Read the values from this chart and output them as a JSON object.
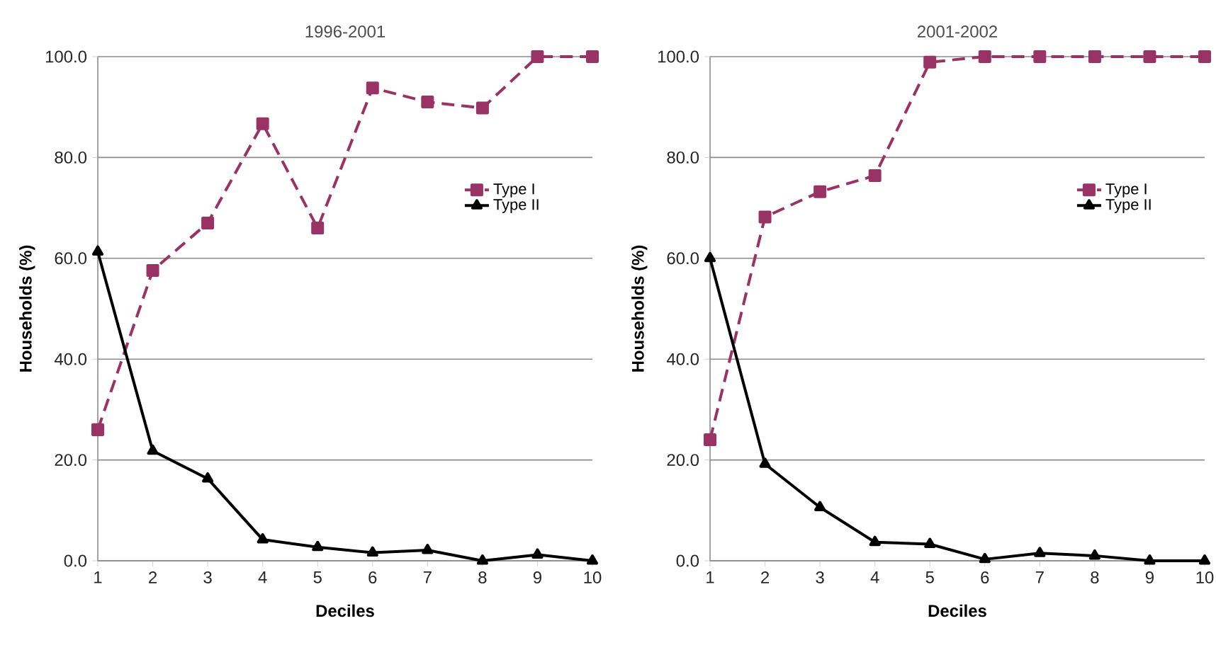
{
  "chart_data": [
    {
      "type": "line",
      "title": "1996-2001",
      "xlabel": "Deciles",
      "ylabel": "Households (%)",
      "categories": [
        "1",
        "2",
        "3",
        "4",
        "5",
        "6",
        "7",
        "8",
        "9",
        "10"
      ],
      "series": [
        {
          "name": "Type I",
          "color": "#993366",
          "marker": "square",
          "line_style": "dashed",
          "values": [
            26,
            57.6,
            67,
            86.7,
            66,
            93.8,
            91,
            89.8,
            100,
            100
          ]
        },
        {
          "name": "Type II",
          "color": "#000000",
          "marker": "triangle",
          "line_style": "solid",
          "values": [
            61.3,
            21.8,
            16.3,
            4.2,
            2.7,
            1.6,
            2.1,
            0,
            1.2,
            0
          ]
        }
      ],
      "ylim": [
        0,
        100
      ],
      "yticks": [
        {
          "value": 0,
          "label": "0.0"
        },
        {
          "value": 20,
          "label": "20.0"
        },
        {
          "value": 40,
          "label": "40.0"
        },
        {
          "value": 60,
          "label": "60.0"
        },
        {
          "value": 80,
          "label": "80.0"
        },
        {
          "value": 100,
          "label": "100.0"
        }
      ],
      "grid": "y",
      "legend": "right"
    },
    {
      "type": "line",
      "title": "2001-2002",
      "xlabel": "Deciles",
      "ylabel": "Households (%)",
      "categories": [
        "1",
        "2",
        "3",
        "4",
        "5",
        "6",
        "7",
        "8",
        "9",
        "10"
      ],
      "series": [
        {
          "name": "Type I",
          "color": "#993366",
          "marker": "square",
          "line_style": "dashed",
          "values": [
            24,
            68.2,
            73.2,
            76.4,
            98.9,
            100,
            100,
            100,
            100,
            100
          ]
        },
        {
          "name": "Type II",
          "color": "#000000",
          "marker": "triangle",
          "line_style": "solid",
          "values": [
            60,
            19.2,
            10.6,
            3.7,
            3.3,
            0.3,
            1.5,
            1.0,
            0,
            0
          ]
        }
      ],
      "ylim": [
        0,
        100
      ],
      "yticks": [
        {
          "value": 0,
          "label": "0.0"
        },
        {
          "value": 20,
          "label": "20.0"
        },
        {
          "value": 40,
          "label": "40.0"
        },
        {
          "value": 60,
          "label": "60.0"
        },
        {
          "value": 80,
          "label": "80.0"
        },
        {
          "value": 100,
          "label": "100.0"
        }
      ],
      "grid": "y",
      "legend": "right"
    }
  ]
}
